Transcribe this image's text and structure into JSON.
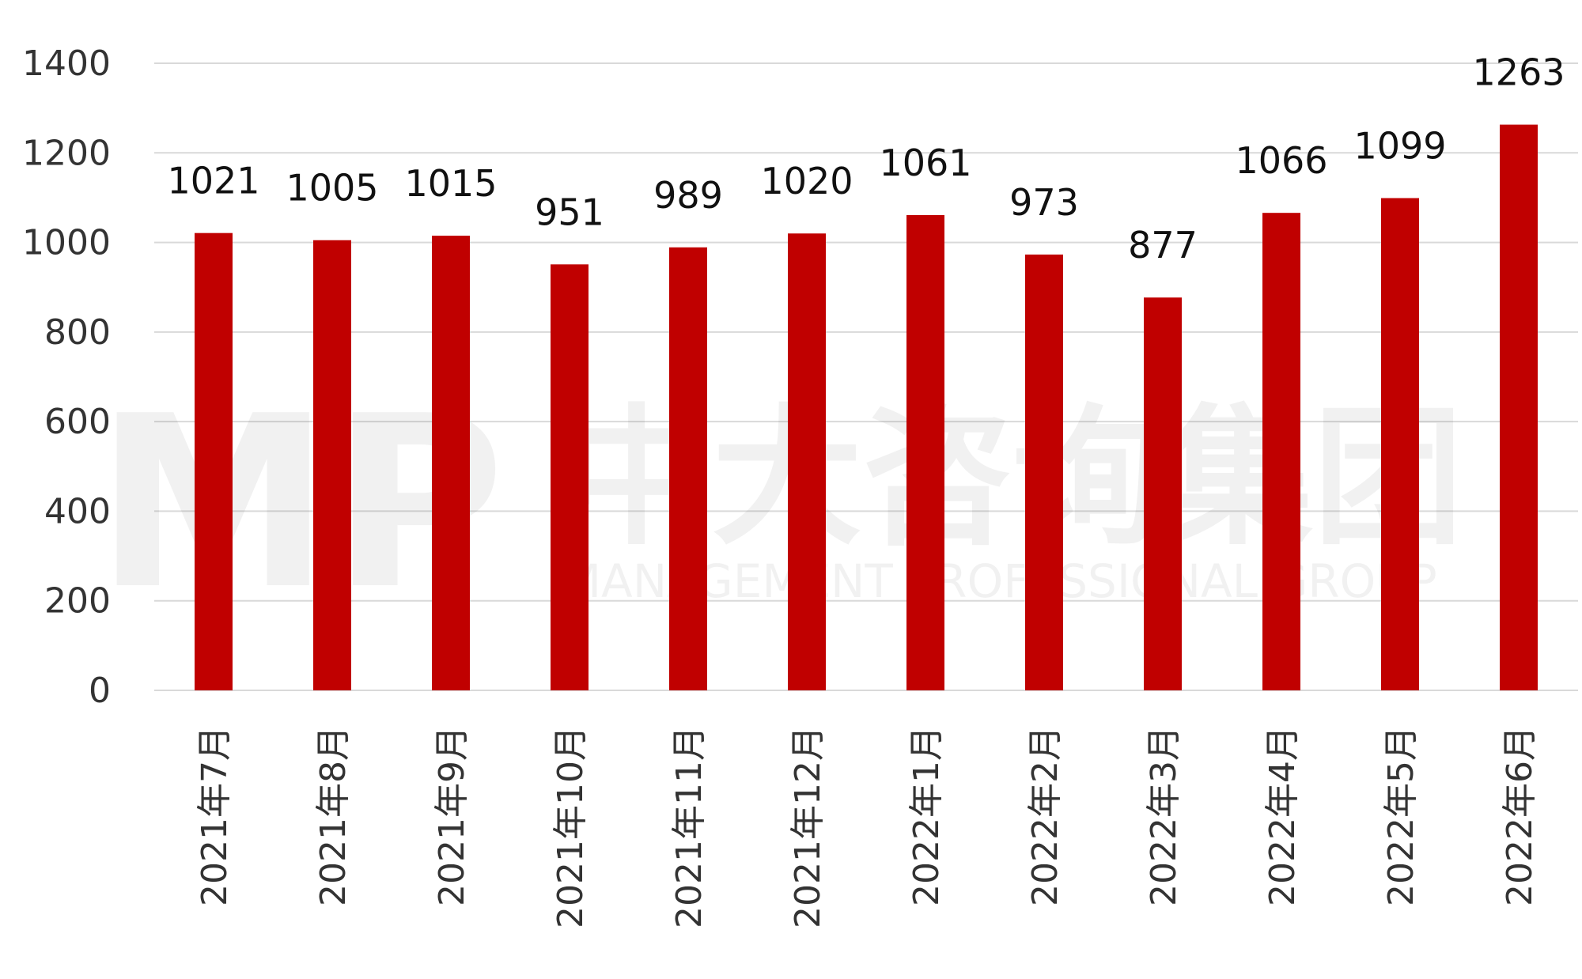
{
  "chart_data": {
    "type": "bar",
    "categories": [
      "2021年7月",
      "2021年8月",
      "2021年9月",
      "2021年10月",
      "2021年11月",
      "2021年12月",
      "2022年1月",
      "2022年2月",
      "2022年3月",
      "2022年4月",
      "2022年5月",
      "2022年6月"
    ],
    "values": [
      1021,
      1005,
      1015,
      951,
      989,
      1020,
      1061,
      973,
      877,
      1066,
      1099,
      1263
    ],
    "title": "",
    "xlabel": "",
    "ylabel": "",
    "ylim": [
      0,
      1400
    ],
    "yticks": [
      0,
      200,
      400,
      600,
      800,
      1000,
      1200,
      1400
    ],
    "grid": true,
    "bar_color": "#c00000",
    "data_labels": true
  },
  "watermark": {
    "logo": "MP",
    "name": "中大咨询集团",
    "subtitle": "MANAGEMENT PROFESSIONAL GROUP"
  }
}
